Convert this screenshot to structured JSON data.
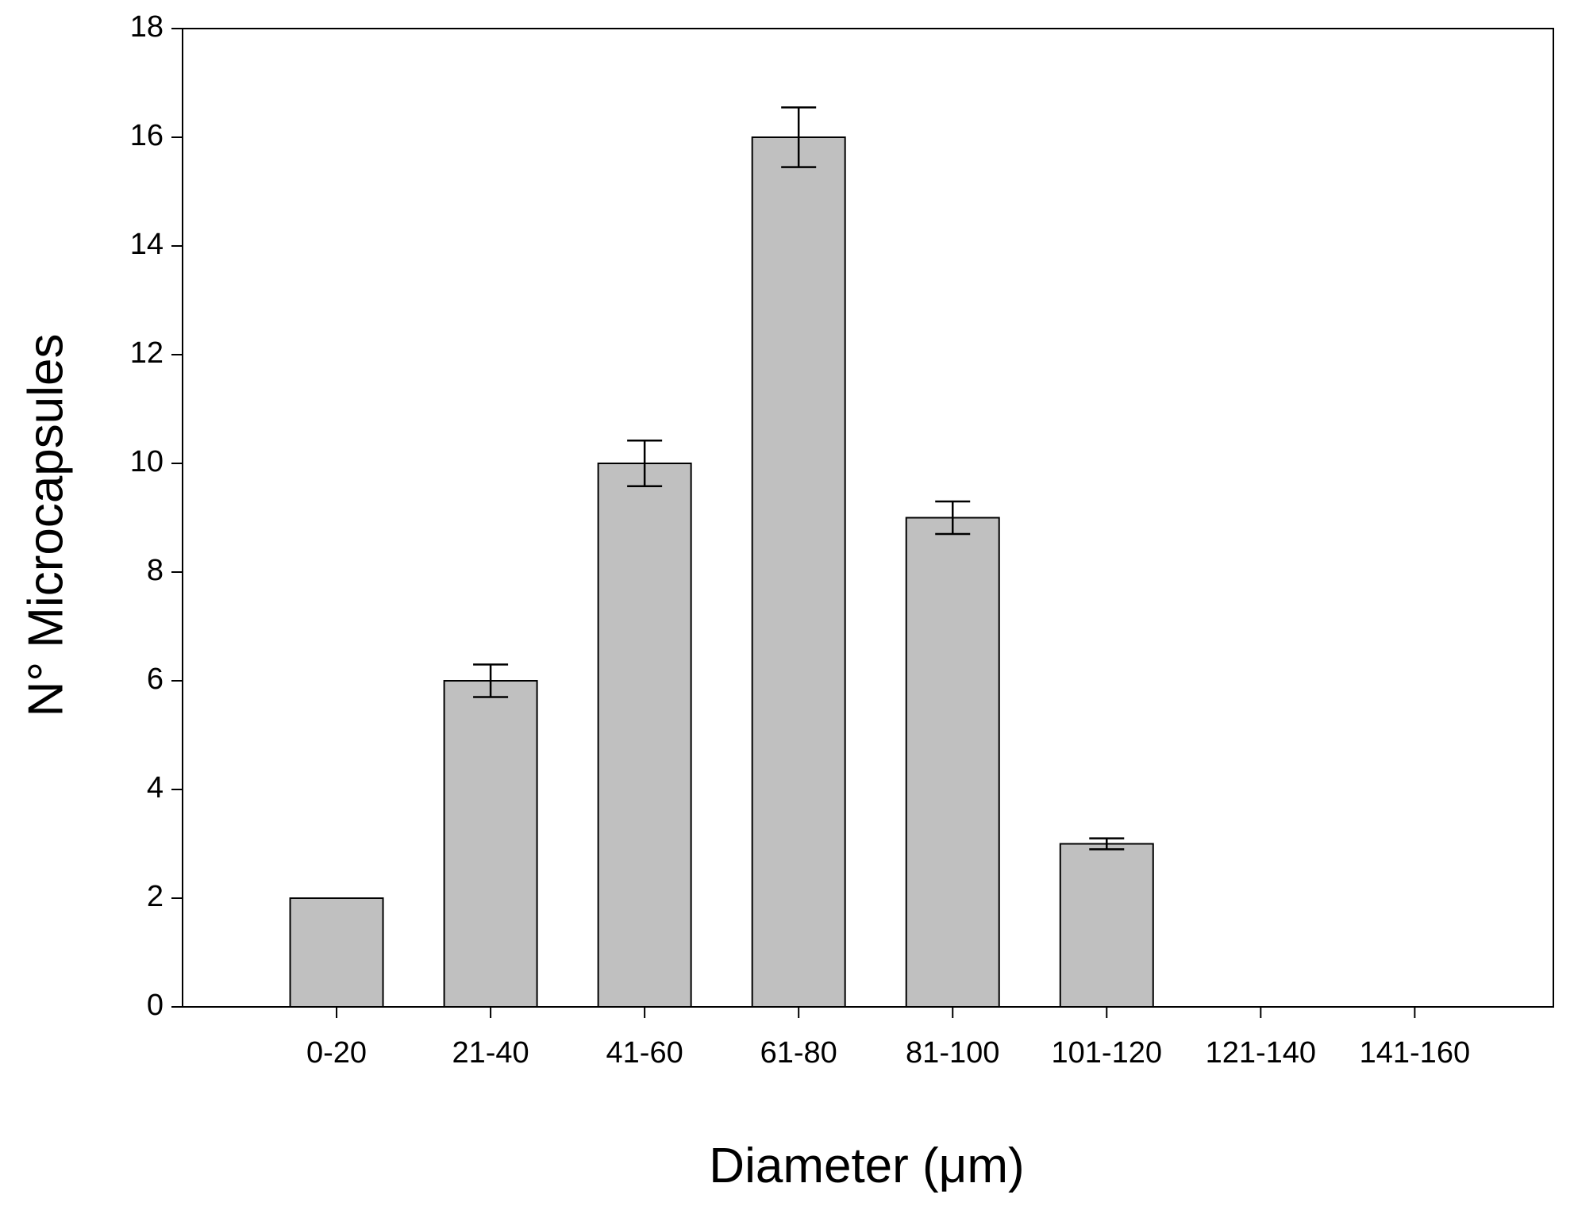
{
  "chart_data": {
    "type": "bar",
    "x_label": "Diameter (μm)",
    "y_label": "N° Microcapsules",
    "categories": [
      "0-20",
      "21-40",
      "41-60",
      "61-80",
      "81-100",
      "101-120",
      "121-140",
      "141-160"
    ],
    "values": [
      2,
      6,
      10,
      16,
      9,
      3,
      null,
      null
    ],
    "errors": [
      null,
      0.3,
      0.42,
      0.55,
      0.3,
      0.1,
      null,
      null
    ],
    "color": "#c0c0c0",
    "ylim": [
      0,
      18
    ],
    "yticks": [
      0,
      2,
      4,
      6,
      8,
      10,
      12,
      14,
      16,
      18
    ]
  }
}
